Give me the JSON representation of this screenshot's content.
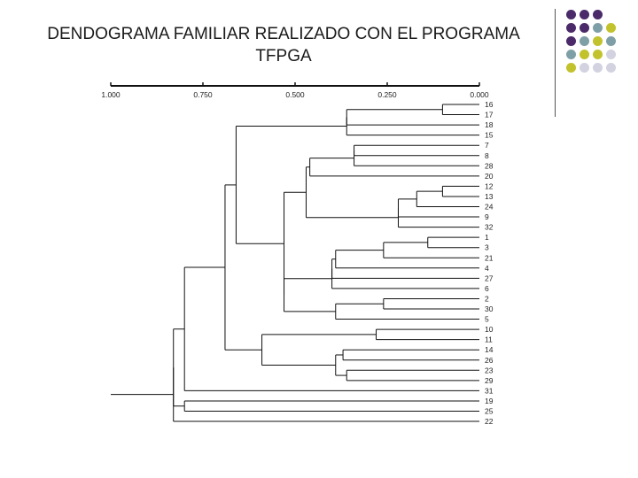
{
  "slide": {
    "title": "DENDOGRAMA  FAMILIAR REALIZADO CON EL PROGRAMA TFPGA"
  },
  "decor_colors": {
    "purple": "#4b2a69",
    "teal": "#7f9fa6",
    "olive": "#c2c22d",
    "lavender": "#d2d2e0"
  },
  "dots_palette_grid": [
    [
      "purple",
      "purple",
      "purple",
      null
    ],
    [
      "purple",
      "purple",
      "teal",
      "olive"
    ],
    [
      "purple",
      "teal",
      "olive",
      "teal"
    ],
    [
      "teal",
      "olive",
      "olive",
      "lavender"
    ],
    [
      "olive",
      "lavender",
      "lavender",
      "lavender"
    ]
  ],
  "chart_data": {
    "type": "dendrogram",
    "scale_ticks": [
      "1.000",
      "0.750",
      "0.500",
      "0.250",
      "0.000"
    ],
    "scale_range": [
      1.0,
      0.0
    ],
    "leaves": [
      "16",
      "17",
      "18",
      "15",
      "7",
      "8",
      "28",
      "20",
      "12",
      "13",
      "24",
      "9",
      "32",
      "1",
      "3",
      "21",
      "4",
      "27",
      "6",
      "2",
      "30",
      "5",
      "10",
      "11",
      "14",
      "26",
      "23",
      "29",
      "31",
      "19",
      "25",
      "22"
    ],
    "merges": [
      {
        "id": "m1",
        "a": "16",
        "b": "17",
        "height": 0.1
      },
      {
        "id": "m2",
        "a": "m1",
        "b": "18",
        "height": 0.36
      },
      {
        "id": "m3",
        "a": "m2",
        "b": "15",
        "height": 0.36
      },
      {
        "id": "m4",
        "a": "7",
        "b": "8",
        "height": 0.34
      },
      {
        "id": "m5",
        "a": "m4",
        "b": "28",
        "height": 0.34
      },
      {
        "id": "m6",
        "a": "m5",
        "b": "20",
        "height": 0.46
      },
      {
        "id": "m7",
        "a": "12",
        "b": "13",
        "height": 0.1
      },
      {
        "id": "m8",
        "a": "m7",
        "b": "24",
        "height": 0.17
      },
      {
        "id": "m9",
        "a": "m8",
        "b": "9",
        "height": 0.22
      },
      {
        "id": "m10",
        "a": "m9",
        "b": "32",
        "height": 0.22
      },
      {
        "id": "m11",
        "a": "m6",
        "b": "m10",
        "height": 0.47
      },
      {
        "id": "m12",
        "a": "1",
        "b": "3",
        "height": 0.14
      },
      {
        "id": "m13",
        "a": "m12",
        "b": "21",
        "height": 0.26
      },
      {
        "id": "m14",
        "a": "m13",
        "b": "4",
        "height": 0.39
      },
      {
        "id": "m15",
        "a": "m14",
        "b": "27",
        "height": 0.4
      },
      {
        "id": "m16",
        "a": "m15",
        "b": "6",
        "height": 0.4
      },
      {
        "id": "m17",
        "a": "2",
        "b": "30",
        "height": 0.26
      },
      {
        "id": "m18",
        "a": "m17",
        "b": "5",
        "height": 0.39
      },
      {
        "id": "m19",
        "a": "m16",
        "b": "m18",
        "height": 0.53
      },
      {
        "id": "m20",
        "a": "m11",
        "b": "m19",
        "height": 0.53
      },
      {
        "id": "m21",
        "a": "m3",
        "b": "m20",
        "height": 0.66
      },
      {
        "id": "m22",
        "a": "10",
        "b": "11",
        "height": 0.28
      },
      {
        "id": "m23",
        "a": "14",
        "b": "26",
        "height": 0.37
      },
      {
        "id": "m24",
        "a": "23",
        "b": "29",
        "height": 0.36
      },
      {
        "id": "m25",
        "a": "m23",
        "b": "m24",
        "height": 0.39
      },
      {
        "id": "m26",
        "a": "m22",
        "b": "m25",
        "height": 0.59
      },
      {
        "id": "m27",
        "a": "m21",
        "b": "m26",
        "height": 0.69
      },
      {
        "id": "m28",
        "a": "m27",
        "b": "31",
        "height": 0.8
      },
      {
        "id": "m29",
        "a": "19",
        "b": "25",
        "height": 0.8
      },
      {
        "id": "m30",
        "a": "m28",
        "b": "m29",
        "height": 0.83
      },
      {
        "id": "m31",
        "a": "m30",
        "b": "22",
        "height": 0.83
      }
    ],
    "root_stem_to": 1.0
  }
}
